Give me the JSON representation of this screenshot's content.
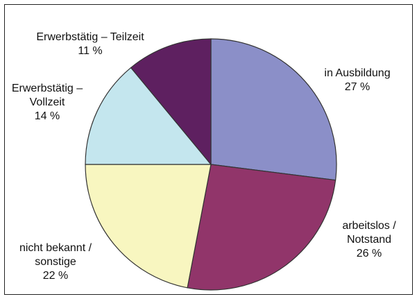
{
  "chart_data": {
    "type": "pie",
    "categories": [
      "in Ausbildung",
      "arbeitslos / Notstand",
      "nicht bekannt / sonstige",
      "Erwerbstätig – Vollzeit",
      "Erwerbstätig – Teilzeit"
    ],
    "values": [
      27,
      26,
      22,
      14,
      11
    ],
    "value_labels": [
      "27 %",
      "26 %",
      "22 %",
      "14 %",
      "11 %"
    ],
    "colors": [
      "#8b8fc8",
      "#91356a",
      "#f8f6c0",
      "#c4e6ee",
      "#5e2060"
    ]
  }
}
